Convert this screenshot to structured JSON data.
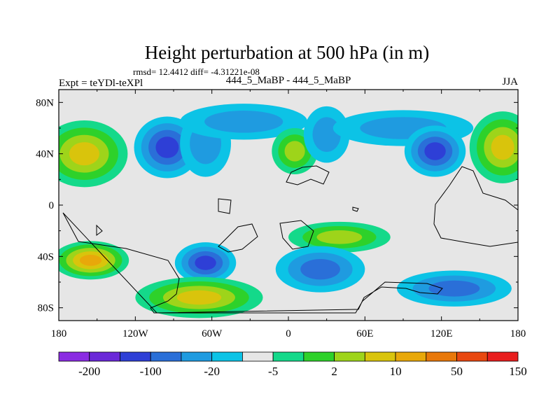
{
  "chart_data": {
    "type": "heatmap",
    "title": "Height perturbation at 500 hPa (in m)",
    "stats_line": "rmsd= 12.4412 diff= -4.31221e-08",
    "left_label": "Expt = teYDl-teXPl",
    "center_label": "444_5_MaBP - 444_5_MaBP",
    "right_label": "JJA",
    "xlabel": "",
    "ylabel": "",
    "xlim": [
      -180,
      180
    ],
    "ylim": [
      -90,
      90
    ],
    "x_ticks": [
      {
        "value": -180,
        "label": "180"
      },
      {
        "value": -120,
        "label": "120W"
      },
      {
        "value": -60,
        "label": "60W"
      },
      {
        "value": 0,
        "label": "0"
      },
      {
        "value": 60,
        "label": "60E"
      },
      {
        "value": 120,
        "label": "120E"
      },
      {
        "value": 180,
        "label": "180"
      }
    ],
    "y_ticks": [
      {
        "value": 80,
        "label": "80N"
      },
      {
        "value": 40,
        "label": "40N"
      },
      {
        "value": 0,
        "label": "0"
      },
      {
        "value": -40,
        "label": "40S"
      },
      {
        "value": -80,
        "label": "80S"
      }
    ],
    "colorbar": {
      "colors": [
        "#8a2be2",
        "#6a28d8",
        "#2e3fd6",
        "#2a6fd8",
        "#1f9be0",
        "#0cc3e6",
        "#e6e6e6",
        "#14d98a",
        "#2ed12a",
        "#9ed41a",
        "#d9c40c",
        "#e8a80a",
        "#e8780a",
        "#e84810",
        "#e81e1e"
      ],
      "tick_labels": [
        "-200",
        "-100",
        "-20",
        "-5",
        "2",
        "10",
        "50",
        "150"
      ]
    },
    "blobs": [
      {
        "lon": -160,
        "lat": 40,
        "rx": 34,
        "ry": 26,
        "value": 35
      },
      {
        "lon": -155,
        "lat": -43,
        "rx": 30,
        "ry": 15,
        "value": 70
      },
      {
        "lon": -95,
        "lat": 45,
        "rx": 26,
        "ry": 24,
        "value": -70
      },
      {
        "lon": -65,
        "lat": 48,
        "rx": 20,
        "ry": 26,
        "value": -15
      },
      {
        "lon": -65,
        "lat": -45,
        "rx": 24,
        "ry": 16,
        "value": -90
      },
      {
        "lon": -70,
        "lat": -72,
        "rx": 50,
        "ry": 16,
        "value": 35
      },
      {
        "lon": -35,
        "lat": 65,
        "rx": 50,
        "ry": 14,
        "value": -7
      },
      {
        "lon": 5,
        "lat": 42,
        "rx": 18,
        "ry": 18,
        "value": 12
      },
      {
        "lon": 30,
        "lat": 55,
        "rx": 18,
        "ry": 22,
        "value": -15
      },
      {
        "lon": 40,
        "lat": -25,
        "rx": 40,
        "ry": 12,
        "value": 14
      },
      {
        "lon": 25,
        "lat": -50,
        "rx": 35,
        "ry": 18,
        "value": -40
      },
      {
        "lon": 90,
        "lat": 60,
        "rx": 55,
        "ry": 14,
        "value": -10
      },
      {
        "lon": 115,
        "lat": 42,
        "rx": 24,
        "ry": 20,
        "value": -50
      },
      {
        "lon": 168,
        "lat": 45,
        "rx": 26,
        "ry": 28,
        "value": 25
      },
      {
        "lon": 130,
        "lat": -65,
        "rx": 45,
        "ry": 14,
        "value": -25
      }
    ]
  }
}
